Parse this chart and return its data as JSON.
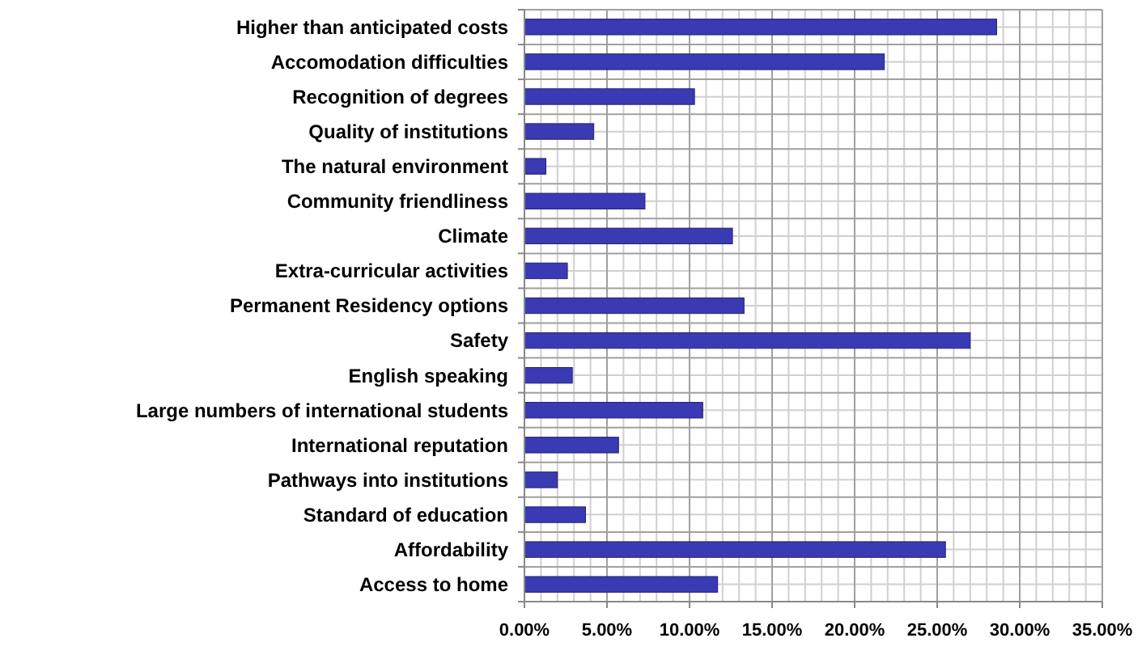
{
  "chart_data": {
    "type": "bar",
    "orientation": "horizontal",
    "categories": [
      "Higher than anticipated costs",
      "Accomodation difficulties",
      "Recognition of degrees",
      "Quality of institutions",
      "The natural environment",
      "Community friendliness",
      "Climate",
      "Extra-curricular activities",
      "Permanent Residency options",
      "Safety",
      "English speaking",
      "Large numbers of international students",
      "International reputation",
      "Pathways into institutions",
      "Standard of education",
      "Affordability",
      "Access to home"
    ],
    "values": [
      28.6,
      21.8,
      10.3,
      4.2,
      1.3,
      7.3,
      12.6,
      2.6,
      13.3,
      27.0,
      2.9,
      10.8,
      5.7,
      2.0,
      3.7,
      25.5,
      11.7
    ],
    "color": "#3a3ab4",
    "xlim": [
      0,
      35
    ],
    "xticks": [
      {
        "value": 0,
        "label": "0.00%"
      },
      {
        "value": 5,
        "label": "5.00%"
      },
      {
        "value": 10,
        "label": "10.00%"
      },
      {
        "value": 15,
        "label": "15.00%"
      },
      {
        "value": 20,
        "label": "20.00%"
      },
      {
        "value": 25,
        "label": "25.00%"
      },
      {
        "value": 30,
        "label": "30.00%"
      },
      {
        "value": 35,
        "label": "35.00%"
      }
    ],
    "grid": true
  }
}
